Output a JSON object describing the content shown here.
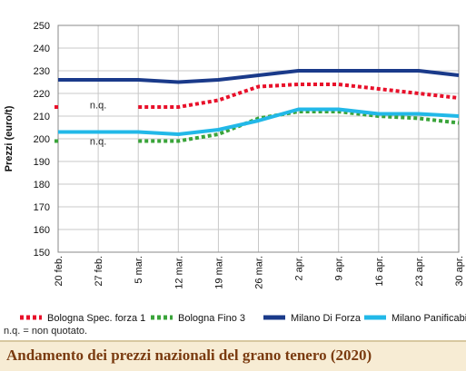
{
  "chart_data": {
    "type": "line",
    "title": "Andamento dei prezzi nazionali del grano tenero (2020)",
    "ylabel": "Prezzi (euro/t)",
    "ylim": [
      150,
      250
    ],
    "yticks": [
      150,
      160,
      170,
      180,
      190,
      200,
      210,
      220,
      230,
      240,
      250
    ],
    "grid": true,
    "legend_position": "bottom",
    "categories": [
      "20 feb.",
      "27 feb.",
      "5 mar.",
      "12 mar.",
      "19 mar.",
      "26 mar.",
      "2 apr.",
      "9 apr.",
      "16 apr.",
      "23 apr.",
      "30 apr."
    ],
    "series": [
      {
        "name": "Bologna Spec. forza 1",
        "color": "#e8102a",
        "style": "dotted",
        "values": [
          214,
          null,
          214,
          214,
          217,
          223,
          224,
          224,
          222,
          220,
          218
        ]
      },
      {
        "name": "Bologna Fino 3",
        "color": "#3aa43a",
        "style": "dotted",
        "values": [
          199,
          null,
          199,
          199,
          202,
          209,
          212,
          212,
          210,
          209,
          207
        ]
      },
      {
        "name": "Milano Di Forza",
        "color": "#1a3a8a",
        "style": "solid",
        "values": [
          226,
          226,
          226,
          225,
          226,
          228,
          230,
          230,
          230,
          230,
          228
        ]
      },
      {
        "name": "Milano Panificabile",
        "color": "#22b8e8",
        "style": "solid",
        "values": [
          203,
          203,
          203,
          202,
          204,
          208,
          213,
          213,
          211,
          211,
          210
        ]
      }
    ],
    "annotations": [
      {
        "text": "n.q.",
        "x": "27 feb.",
        "y": 215
      },
      {
        "text": "n.q.",
        "x": "27 feb.",
        "y": 199
      }
    ]
  },
  "note": "n.q. = non quotato."
}
